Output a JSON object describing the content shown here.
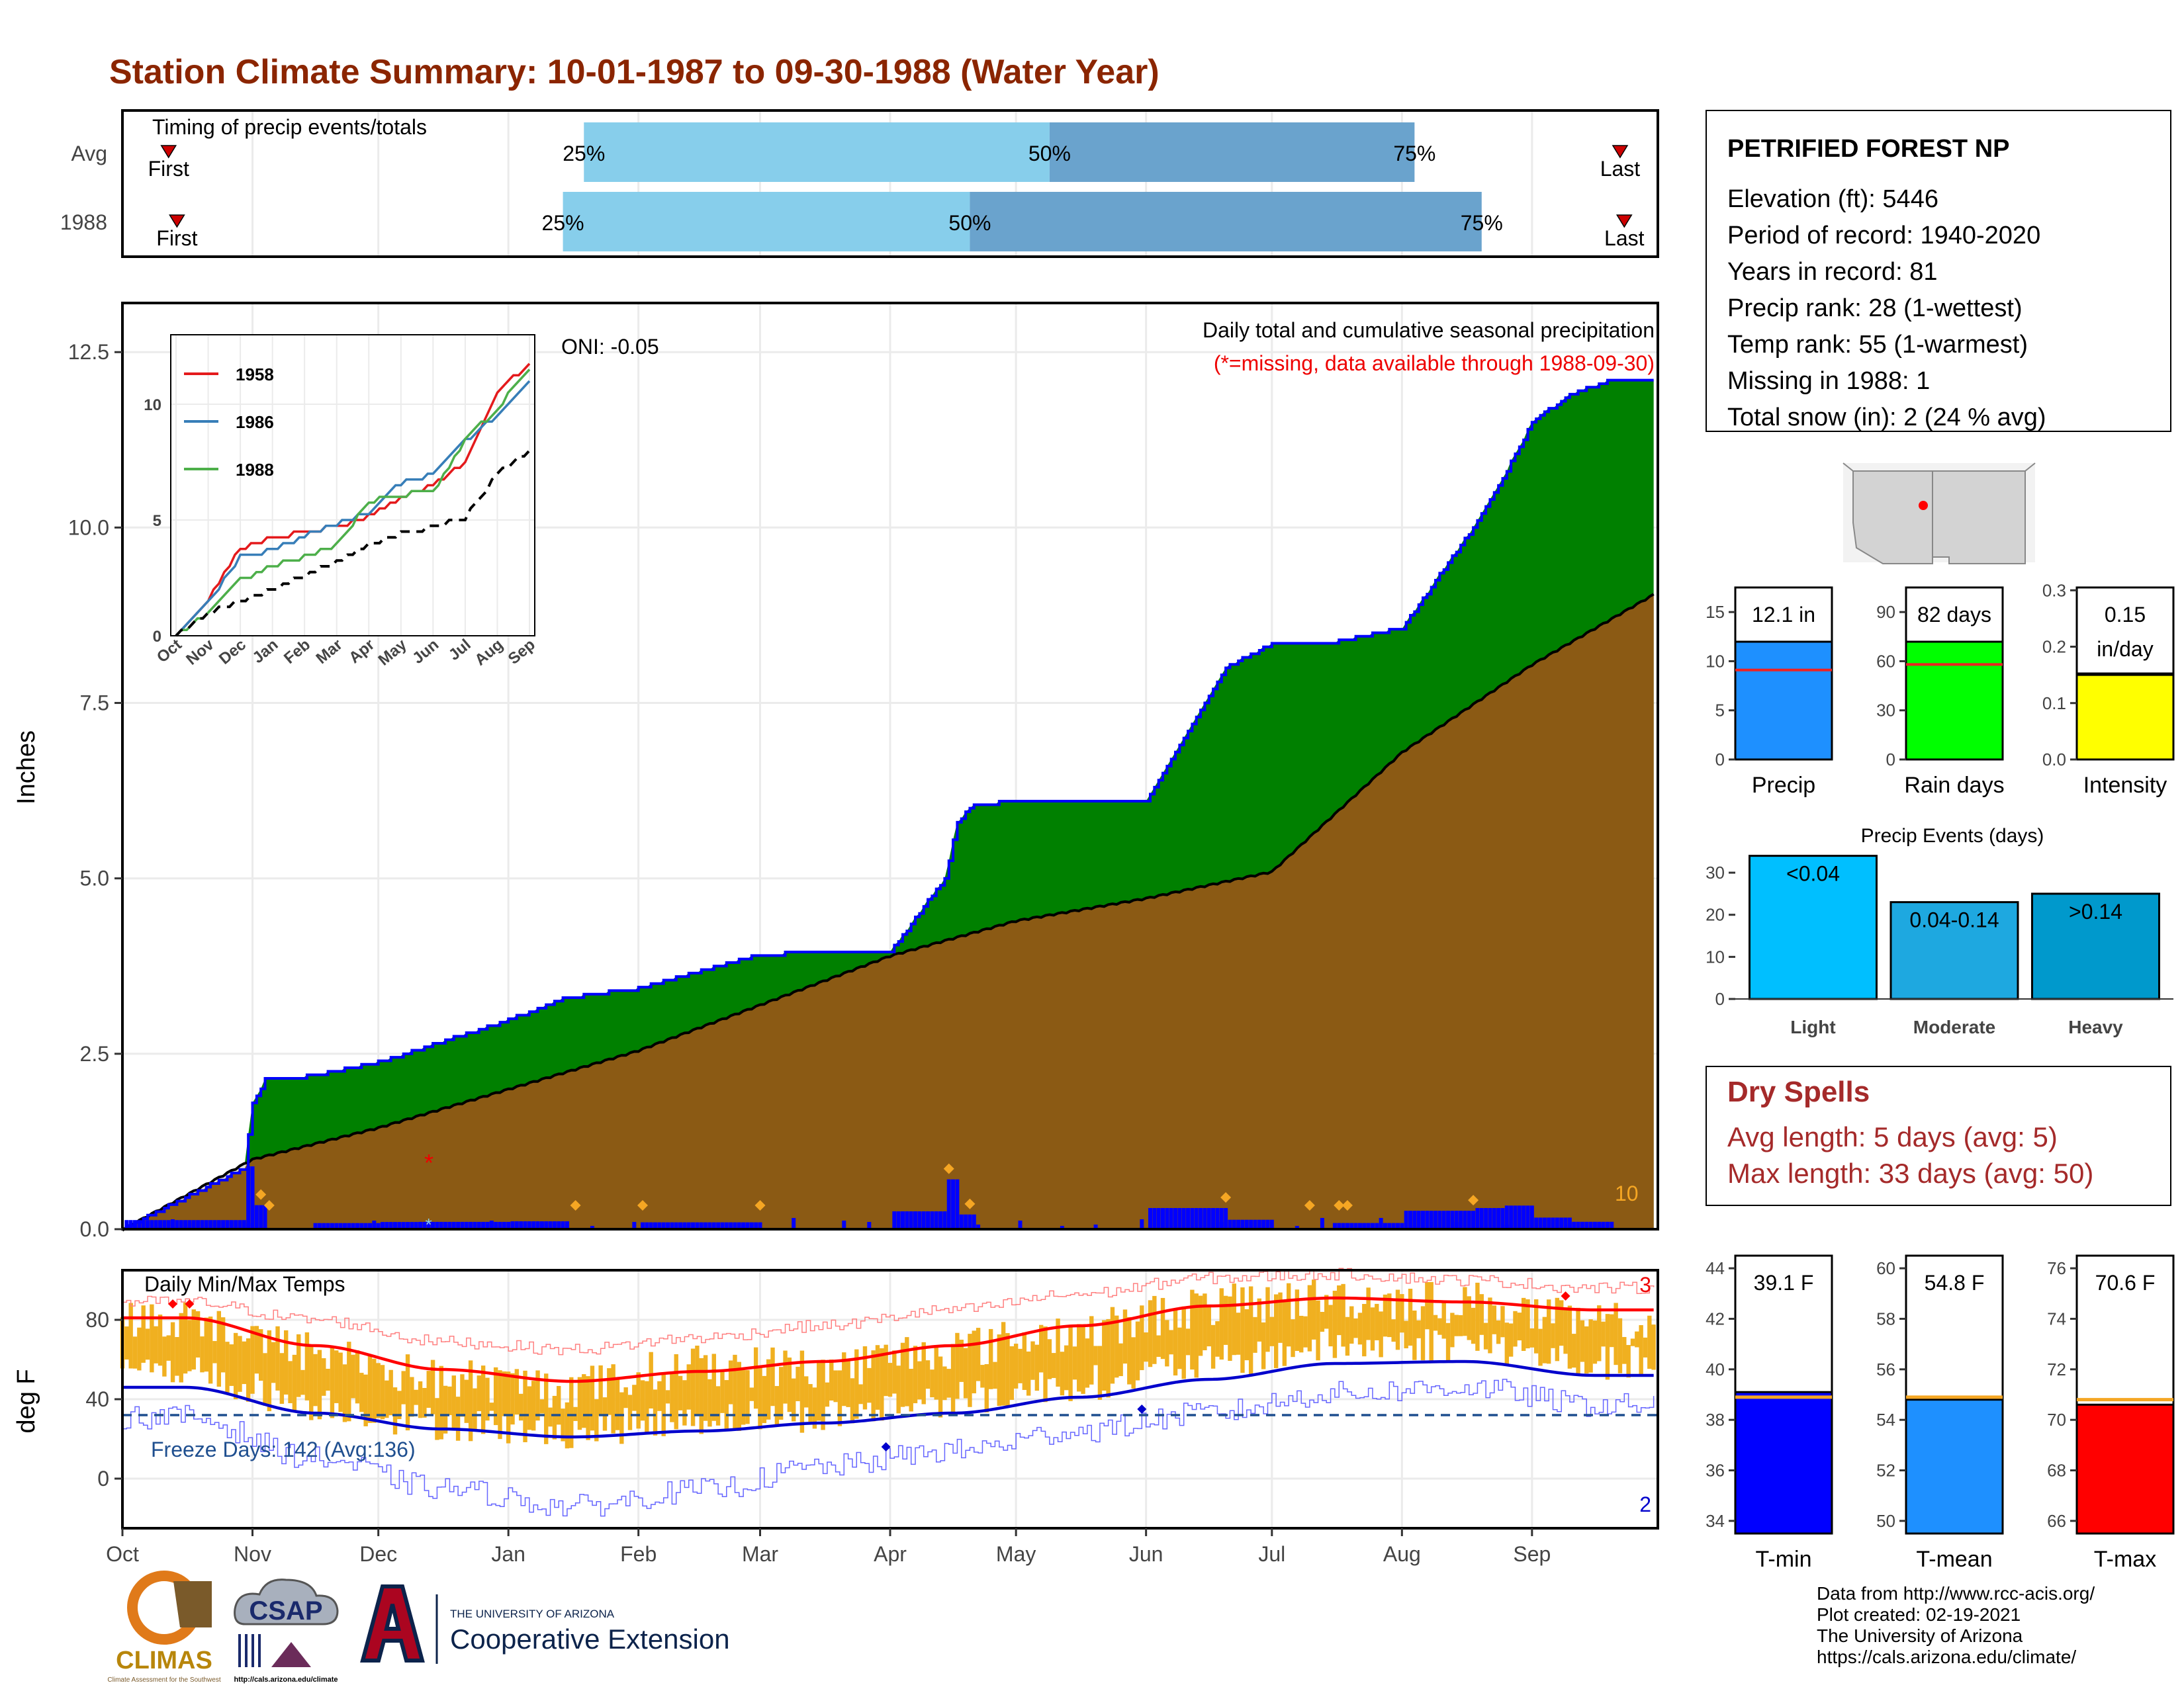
{
  "title": "Station Climate Summary: 10-01-1987 to 09-30-1988 (Water Year)",
  "timing": {
    "panel_label": "Timing of precip events/totals",
    "row_labels": [
      "Avg",
      "1988"
    ],
    "first_label": "First",
    "last_label": "Last",
    "pct_labels": [
      "25%",
      "50%",
      "75%"
    ],
    "rows": [
      {
        "name": "Avg",
        "first": "1987-10-12",
        "q25": "1988-01-19",
        "q50": "1988-05-09",
        "q75": "1988-08-04",
        "last": "1988-09-22"
      },
      {
        "name": "1988",
        "first": "1987-10-14",
        "q25": "1988-01-14",
        "q50": "1988-04-20",
        "q75": "1988-08-20",
        "last": "1988-09-23"
      }
    ],
    "colors": {
      "light": "#87ceeb",
      "dark": "#6aa3cd",
      "marker": "#cc0000"
    }
  },
  "station": {
    "name": "PETRIFIED FOREST NP",
    "lines": [
      "Elevation (ft): 5446",
      "Period of record: 1940-2020",
      "Years in record: 81",
      "Precip rank: 28 (1-wettest)",
      "Temp rank: 55 (1-warmest)",
      "Missing in 1988: 1",
      "Total snow (in): 2 (24 % avg)"
    ]
  },
  "main": {
    "ylabel": "Inches",
    "title_line1": "Daily total and cumulative seasonal precipitation",
    "title_line2": "(*=missing, data available through 1988-09-30)",
    "oni": "ONI: -0.05",
    "count_label": "10",
    "missing_marker": "*",
    "months": [
      "Oct",
      "Nov",
      "Dec",
      "Jan",
      "Feb",
      "Mar",
      "Apr",
      "May",
      "Jun",
      "Jul",
      "Aug",
      "Sep"
    ],
    "yticks": [
      "0.0",
      "2.5",
      "5.0",
      "7.5",
      "10.0",
      "12.5"
    ],
    "colors": {
      "above": "#008000",
      "below": "#8b5a14",
      "avg_fill": "#dedede",
      "line": "#0000ff",
      "bars": "#0000ff",
      "diamond": "#f5a623"
    }
  },
  "inset": {
    "months": [
      "Oct",
      "Nov",
      "Dec",
      "Jan",
      "Feb",
      "Mar",
      "Apr",
      "May",
      "Jun",
      "Jul",
      "Aug",
      "Sep"
    ],
    "yticks": [
      "0",
      "5",
      "10"
    ],
    "legend": [
      {
        "name": "1958",
        "color": "#e41a1c"
      },
      {
        "name": "1986",
        "color": "#377eb8"
      },
      {
        "name": "1988",
        "color": "#4daf4a"
      }
    ]
  },
  "stats": {
    "precip": {
      "label": "Precip",
      "value_text": "12.1 in",
      "ticks": [
        "0",
        "5",
        "10",
        "15"
      ],
      "color": "#1e90ff"
    },
    "rain_days": {
      "label": "Rain days",
      "value_text": "82 days",
      "ticks": [
        "0",
        "30",
        "60",
        "90"
      ],
      "color": "#00ff00"
    },
    "intensity": {
      "label": "Intensity",
      "value_text": "0.15",
      "value_text2": "in/day",
      "ticks": [
        "0.0",
        "0.1",
        "0.2",
        "0.3"
      ],
      "color": "#ffff00"
    }
  },
  "events": {
    "title": "Precip Events (days)",
    "ticks": [
      "0",
      "10",
      "20",
      "30"
    ],
    "bars": [
      {
        "category": "Light",
        "label": "<0.04",
        "color": "#00bfff"
      },
      {
        "category": "Moderate",
        "label": "0.04-0.14",
        "color": "#1ea8e0"
      },
      {
        "category": "Heavy",
        "label": ">0.14",
        "color": "#0099cc"
      }
    ]
  },
  "dry": {
    "title": "Dry Spells",
    "line1": "Avg length: 5 days (avg: 5)",
    "line2": "Max length: 33 days (avg: 50)",
    "color": "#a52a2a"
  },
  "temps": {
    "panel_label": "Daily Min/Max Temps",
    "ylabel": "deg F",
    "freeze_text": "Freeze Days: 142 (Avg:136)",
    "record_hi_count": "3",
    "record_lo_count": "2",
    "yticks": [
      "0",
      "40",
      "80"
    ],
    "months": [
      "Oct",
      "Nov",
      "Dec",
      "Jan",
      "Feb",
      "Mar",
      "Apr",
      "May",
      "Jun",
      "Jul",
      "Aug",
      "Sep"
    ],
    "colors": {
      "range": "#f0b020",
      "max": "#ff0000",
      "min": "#0000cc",
      "freeze": "#1f4f8f"
    }
  },
  "tbars": {
    "tmin": {
      "label": "T-min",
      "value_text": "39.1 F",
      "ticks": [
        "34",
        "36",
        "38",
        "40",
        "42",
        "44"
      ],
      "color": "#0000ff"
    },
    "tmean": {
      "label": "T-mean",
      "value_text": "54.8 F",
      "ticks": [
        "50",
        "52",
        "54",
        "56",
        "58",
        "60"
      ],
      "color": "#1e90ff"
    },
    "tmax": {
      "label": "T-max",
      "value_text": "70.6 F",
      "ticks": [
        "66",
        "68",
        "70",
        "72",
        "74",
        "76"
      ],
      "color": "#ff0000"
    }
  },
  "footer": [
    "Data from http://www.rcc-acis.org/",
    "Plot created: 02-19-2021",
    "The University of Arizona",
    "https://cals.arizona.edu/climate/"
  ],
  "logos": {
    "climas": "CLIMAS",
    "climas_sub": "Climate Assessment for the Southwest",
    "csap": "CSAP",
    "csap_url": "http://cals.arizona.edu/climate",
    "ua_small": "THE UNIVERSITY OF ARIZONA",
    "ua_big": "Cooperative Extension"
  },
  "chart_data": [
    {
      "type": "area",
      "title": "Daily total and cumulative seasonal precipitation",
      "ylabel": "Inches",
      "ylim": [
        0,
        13.2
      ],
      "x_range": [
        "1987-10-01",
        "1988-09-30"
      ],
      "series": [
        {
          "name": "1988 cumulative",
          "x": [
            "1987-10-01",
            "1987-10-30",
            "1987-11-01",
            "1987-11-04",
            "1987-11-15",
            "1987-12-01",
            "1987-12-10",
            "1988-01-01",
            "1988-01-15",
            "1988-02-01",
            "1988-03-01",
            "1988-04-01",
            "1988-04-14",
            "1988-04-17",
            "1988-04-21",
            "1988-05-01",
            "1988-06-01",
            "1988-06-20",
            "1988-07-01",
            "1988-07-15",
            "1988-08-01",
            "1988-08-18",
            "1988-08-25",
            "1988-09-01",
            "1988-09-10",
            "1988-09-20",
            "1988-09-30"
          ],
          "values": [
            0.0,
            0.87,
            1.78,
            2.13,
            2.18,
            2.38,
            2.55,
            2.98,
            3.3,
            3.43,
            3.92,
            3.95,
            5.0,
            5.8,
            6.05,
            6.1,
            6.1,
            8.0,
            8.35,
            8.35,
            8.57,
            10.0,
            10.7,
            11.5,
            11.9,
            12.1,
            12.1
          ]
        },
        {
          "name": "Average cumulative",
          "x": [
            "1987-10-01",
            "1987-11-01",
            "1987-12-01",
            "1988-01-01",
            "1988-02-01",
            "1988-03-01",
            "1988-04-01",
            "1988-05-01",
            "1988-06-01",
            "1988-07-01",
            "1988-08-01",
            "1988-09-01",
            "1988-09-30"
          ],
          "values": [
            0.0,
            1.0,
            1.45,
            2.0,
            2.55,
            3.2,
            3.9,
            4.4,
            4.72,
            5.1,
            6.8,
            8.05,
            9.05
          ]
        }
      ]
    },
    {
      "type": "line",
      "title": "Inset cumulative precipitation",
      "ylim": [
        0,
        13
      ],
      "x": [
        "Oct",
        "Nov",
        "Dec",
        "Jan",
        "Feb",
        "Mar",
        "Apr",
        "May",
        "Jun",
        "Jul",
        "Aug",
        "Sep"
      ],
      "series": [
        {
          "name": "1958",
          "values": [
            0.0,
            1.5,
            3.8,
            4.2,
            4.5,
            4.7,
            5.2,
            6.0,
            6.5,
            7.5,
            10.5,
            11.8
          ]
        },
        {
          "name": "1986",
          "values": [
            0.0,
            1.4,
            3.4,
            3.7,
            4.3,
            4.8,
            5.3,
            6.6,
            7.0,
            8.4,
            9.5,
            11.0
          ]
        },
        {
          "name": "1988",
          "values": [
            0.0,
            1.0,
            2.4,
            3.0,
            3.4,
            3.9,
            5.8,
            6.1,
            6.2,
            8.5,
            9.8,
            11.6
          ]
        },
        {
          "name": "Average",
          "values": [
            0.0,
            1.0,
            1.5,
            2.0,
            2.6,
            3.2,
            3.9,
            4.4,
            4.7,
            5.1,
            7.0,
            8.0
          ]
        }
      ]
    },
    {
      "type": "bar",
      "title": "Precip",
      "categories": [
        "Precip"
      ],
      "values": [
        12.1
      ],
      "average": 9.1,
      "ylim": [
        0,
        17.5
      ]
    },
    {
      "type": "bar",
      "title": "Rain days",
      "categories": [
        "Rain days"
      ],
      "values": [
        82
      ],
      "average": 58,
      "ylim": [
        0,
        105
      ]
    },
    {
      "type": "bar",
      "title": "Intensity",
      "categories": [
        "Intensity"
      ],
      "values": [
        0.15
      ],
      "average": 0.16,
      "ylim": [
        0,
        0.305
      ]
    },
    {
      "type": "bar",
      "title": "Precip Events (days)",
      "categories": [
        "Light",
        "Moderate",
        "Heavy"
      ],
      "values": [
        34,
        23,
        25
      ],
      "ylim": [
        0,
        33
      ]
    },
    {
      "type": "line",
      "title": "Daily Min/Max Temps",
      "ylabel": "deg F",
      "ylim": [
        -25,
        105
      ],
      "x": [
        "Oct",
        "Nov",
        "Dec",
        "Jan",
        "Feb",
        "Mar",
        "Apr",
        "May",
        "Jun",
        "Jul",
        "Aug",
        "Sep"
      ],
      "freeze_line": 32,
      "series": [
        {
          "name": "Avg Tmax",
          "values": [
            81,
            67,
            55,
            49,
            54,
            59,
            67,
            77,
            87,
            91,
            89,
            85
          ]
        },
        {
          "name": "Avg Tmin",
          "values": [
            46,
            33,
            25,
            21,
            24,
            28,
            33,
            41,
            50,
            58,
            59,
            52
          ]
        },
        {
          "name": "Record Tmax",
          "values": [
            89,
            80,
            69,
            65,
            71,
            77,
            85,
            93,
            101,
            103,
            100,
            96
          ]
        },
        {
          "name": "Record Tmin",
          "values": [
            31,
            10,
            -5,
            -14,
            -6,
            6,
            14,
            24,
            33,
            43,
            46,
            37
          ]
        },
        {
          "name": "1988 Tmax",
          "values": [
            80,
            64,
            50,
            46,
            57,
            56,
            66,
            74,
            87,
            91,
            89,
            78
          ]
        },
        {
          "name": "1988 Tmin",
          "values": [
            44,
            28,
            18,
            14,
            21,
            22,
            30,
            38,
            48,
            57,
            58,
            48
          ]
        }
      ]
    },
    {
      "type": "bar",
      "title": "T-min",
      "categories": [
        "T-min"
      ],
      "values": [
        39.1
      ],
      "average": 38.9,
      "ylim": [
        33.5,
        44.5
      ]
    },
    {
      "type": "bar",
      "title": "T-mean",
      "categories": [
        "T-mean"
      ],
      "values": [
        54.8
      ],
      "average": 54.9,
      "ylim": [
        49.5,
        60.5
      ]
    },
    {
      "type": "bar",
      "title": "T-max",
      "categories": [
        "T-max"
      ],
      "values": [
        70.6
      ],
      "average": 70.8,
      "ylim": [
        65.5,
        76.5
      ]
    }
  ]
}
